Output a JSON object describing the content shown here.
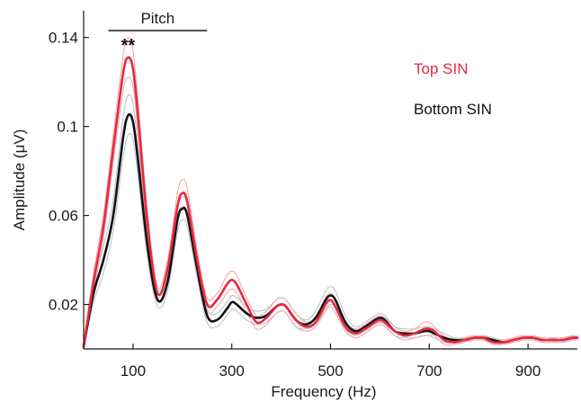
{
  "chart_data": {
    "type": "line",
    "xlabel": "Frequency (Hz)",
    "ylabel": "Amplitude (μV)",
    "xlim": [
      0,
      1000
    ],
    "ylim": [
      0,
      0.152
    ],
    "xticks": [
      100,
      300,
      500,
      700,
      900
    ],
    "yticks": [
      0.02,
      0.06,
      0.1,
      0.14
    ],
    "xtick_labels": [
      "100",
      "300",
      "500",
      "700",
      "900"
    ],
    "ytick_labels": [
      "0.02",
      "0.06",
      "0.1",
      "0.14"
    ],
    "grid": false,
    "legend_position": "top-right",
    "annotations": {
      "bracket_label": "Pitch",
      "bracket_range": [
        50,
        250
      ],
      "significance": "**",
      "significance_x": 90
    },
    "series": [
      {
        "name": "Top SIN",
        "color": "#e8293d",
        "band_color": "#f3a8b0",
        "x": [
          0,
          20,
          40,
          60,
          80,
          90,
          100,
          110,
          130,
          150,
          170,
          190,
          200,
          210,
          230,
          250,
          270,
          290,
          300,
          310,
          330,
          350,
          370,
          390,
          400,
          410,
          430,
          450,
          470,
          490,
          500,
          510,
          530,
          550,
          570,
          590,
          600,
          610,
          630,
          650,
          670,
          690,
          700,
          710,
          730,
          750,
          770,
          790,
          800,
          810,
          830,
          850,
          870,
          890,
          900,
          910,
          930,
          950,
          970,
          990,
          1000
        ],
        "y": [
          0.001,
          0.03,
          0.055,
          0.09,
          0.124,
          0.131,
          0.126,
          0.105,
          0.055,
          0.025,
          0.036,
          0.064,
          0.07,
          0.066,
          0.04,
          0.02,
          0.022,
          0.029,
          0.031,
          0.029,
          0.02,
          0.012,
          0.014,
          0.019,
          0.02,
          0.019,
          0.013,
          0.01,
          0.012,
          0.02,
          0.022,
          0.019,
          0.01,
          0.007,
          0.009,
          0.012,
          0.013,
          0.012,
          0.008,
          0.006,
          0.007,
          0.009,
          0.009,
          0.008,
          0.004,
          0.003,
          0.004,
          0.005,
          0.005,
          0.005,
          0.003,
          0.003,
          0.004,
          0.005,
          0.005,
          0.005,
          0.004,
          0.004,
          0.004,
          0.005,
          0.005
        ],
        "band_upper": [
          0.002,
          0.034,
          0.06,
          0.096,
          0.132,
          0.14,
          0.134,
          0.112,
          0.06,
          0.028,
          0.04,
          0.07,
          0.076,
          0.072,
          0.044,
          0.023,
          0.025,
          0.033,
          0.035,
          0.033,
          0.023,
          0.015,
          0.017,
          0.022,
          0.023,
          0.022,
          0.016,
          0.012,
          0.014,
          0.023,
          0.025,
          0.022,
          0.012,
          0.009,
          0.011,
          0.014,
          0.015,
          0.014,
          0.01,
          0.008,
          0.009,
          0.012,
          0.012,
          0.01,
          0.006,
          0.004,
          0.005,
          0.006,
          0.006,
          0.006,
          0.004,
          0.004,
          0.005,
          0.006,
          0.006,
          0.006,
          0.005,
          0.005,
          0.005,
          0.006,
          0.006
        ],
        "band_lower": [
          0.0,
          0.026,
          0.05,
          0.084,
          0.116,
          0.122,
          0.118,
          0.098,
          0.05,
          0.022,
          0.032,
          0.058,
          0.064,
          0.06,
          0.036,
          0.017,
          0.019,
          0.025,
          0.027,
          0.025,
          0.017,
          0.009,
          0.011,
          0.016,
          0.017,
          0.016,
          0.01,
          0.008,
          0.01,
          0.017,
          0.019,
          0.016,
          0.008,
          0.005,
          0.007,
          0.01,
          0.011,
          0.01,
          0.006,
          0.004,
          0.005,
          0.006,
          0.006,
          0.006,
          0.002,
          0.002,
          0.003,
          0.004,
          0.004,
          0.004,
          0.002,
          0.002,
          0.003,
          0.004,
          0.004,
          0.004,
          0.003,
          0.003,
          0.003,
          0.004,
          0.004
        ]
      },
      {
        "name": "Bottom SIN",
        "color": "#111111",
        "band_color": "#b8c4d0",
        "x": [
          0,
          20,
          40,
          60,
          80,
          90,
          100,
          110,
          130,
          150,
          170,
          190,
          200,
          210,
          230,
          250,
          270,
          290,
          300,
          310,
          330,
          350,
          370,
          390,
          400,
          410,
          430,
          450,
          470,
          490,
          500,
          510,
          530,
          550,
          570,
          590,
          600,
          610,
          630,
          650,
          670,
          690,
          700,
          710,
          730,
          750,
          770,
          790,
          800,
          810,
          830,
          850,
          870,
          890,
          900,
          910,
          930,
          950,
          970,
          990,
          1000
        ],
        "y": [
          0.001,
          0.025,
          0.04,
          0.06,
          0.095,
          0.105,
          0.102,
          0.085,
          0.045,
          0.022,
          0.03,
          0.058,
          0.063,
          0.06,
          0.036,
          0.015,
          0.013,
          0.018,
          0.021,
          0.02,
          0.016,
          0.014,
          0.015,
          0.019,
          0.02,
          0.019,
          0.013,
          0.011,
          0.014,
          0.022,
          0.024,
          0.022,
          0.012,
          0.008,
          0.01,
          0.013,
          0.014,
          0.013,
          0.008,
          0.007,
          0.007,
          0.008,
          0.008,
          0.007,
          0.005,
          0.004,
          0.004,
          0.005,
          0.005,
          0.005,
          0.004,
          0.003,
          0.004,
          0.005,
          0.005,
          0.005,
          0.004,
          0.004,
          0.004,
          0.005,
          0.005
        ],
        "band_upper": [
          0.002,
          0.029,
          0.046,
          0.067,
          0.104,
          0.114,
          0.11,
          0.092,
          0.05,
          0.025,
          0.034,
          0.063,
          0.068,
          0.065,
          0.04,
          0.018,
          0.016,
          0.021,
          0.024,
          0.023,
          0.019,
          0.017,
          0.018,
          0.022,
          0.023,
          0.022,
          0.016,
          0.013,
          0.017,
          0.026,
          0.028,
          0.026,
          0.015,
          0.01,
          0.012,
          0.015,
          0.016,
          0.015,
          0.01,
          0.009,
          0.009,
          0.01,
          0.01,
          0.009,
          0.007,
          0.005,
          0.005,
          0.006,
          0.006,
          0.006,
          0.005,
          0.004,
          0.005,
          0.006,
          0.006,
          0.006,
          0.005,
          0.005,
          0.005,
          0.006,
          0.006
        ],
        "band_lower": [
          0.0,
          0.021,
          0.034,
          0.053,
          0.086,
          0.096,
          0.094,
          0.078,
          0.04,
          0.019,
          0.026,
          0.053,
          0.058,
          0.055,
          0.032,
          0.012,
          0.01,
          0.015,
          0.018,
          0.017,
          0.013,
          0.011,
          0.012,
          0.016,
          0.017,
          0.016,
          0.01,
          0.009,
          0.011,
          0.018,
          0.02,
          0.018,
          0.009,
          0.006,
          0.008,
          0.011,
          0.012,
          0.011,
          0.006,
          0.005,
          0.005,
          0.006,
          0.006,
          0.005,
          0.003,
          0.003,
          0.003,
          0.004,
          0.004,
          0.004,
          0.003,
          0.002,
          0.003,
          0.004,
          0.004,
          0.004,
          0.003,
          0.003,
          0.003,
          0.004,
          0.004
        ]
      }
    ]
  }
}
